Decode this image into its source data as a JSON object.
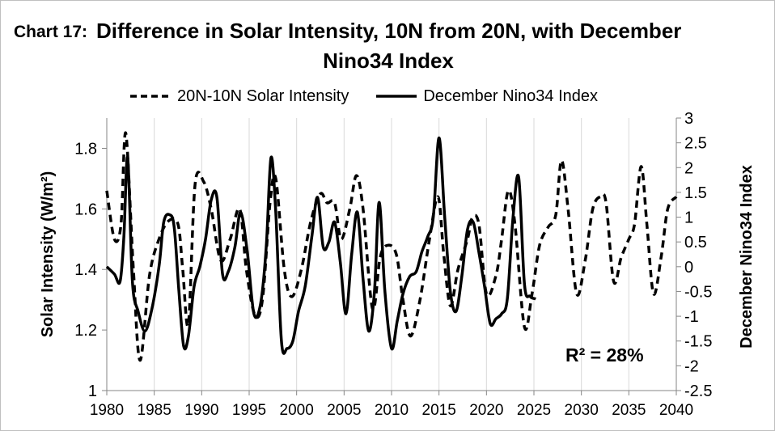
{
  "figure": {
    "chart_number": "Chart 17:",
    "title_line1": "Difference in Solar Intensity, 10N from 20N, with December",
    "title_line2": "Nino34 Index",
    "annotation": "R² = 28%"
  },
  "chart_data": {
    "type": "line",
    "title": "Difference in Solar Intensity, 10N from 20N, with December Nino34 Index",
    "xlabel": "",
    "ylabel": "Solar Intensity (W/m²)",
    "y2label": "December Nino34 Index",
    "xlim": [
      1980,
      2040
    ],
    "ylim": [
      1,
      1.9
    ],
    "y2lim": [
      -2.5,
      3
    ],
    "grid": "vertical",
    "legend_position": "top",
    "x_ticks": [
      1980,
      1985,
      1990,
      1995,
      2000,
      2005,
      2010,
      2015,
      2020,
      2025,
      2030,
      2035,
      2040
    ],
    "y_ticks": [
      1,
      1.2,
      1.4,
      1.6,
      1.8
    ],
    "y_tick_labels": [
      "1",
      "1.2",
      "1.4",
      "1.6",
      "1.8"
    ],
    "y2_ticks": [
      -2.5,
      -2,
      -1.5,
      -1,
      -0.5,
      0,
      0.5,
      1,
      1.5,
      2,
      2.5,
      3
    ],
    "y2_tick_labels": [
      "-2.5",
      "-2",
      "-1.5",
      "-1",
      "-0.5",
      "0",
      "0.5",
      "1",
      "1.5",
      "2",
      "2.5",
      "3"
    ],
    "annotation": "R² = 28%",
    "series": [
      {
        "name": "20N-10N Solar Intensity",
        "axis": "left",
        "style": "dashed",
        "x": [
          1980,
          1980.8,
          1981.5,
          1982,
          1982.8,
          1983.5,
          1984.5,
          1985.5,
          1986.5,
          1987.5,
          1988,
          1988.6,
          1989.3,
          1990.2,
          1991,
          1992,
          1993,
          1994,
          1994.7,
          1995.6,
          1996.4,
          1997.2,
          1997.8,
          1998.7,
          1999.5,
          2000.5,
          2001.5,
          2002.5,
          2003.2,
          2004,
          2004.7,
          2005.6,
          2006.3,
          2007,
          2008,
          2008.8,
          2009.6,
          2010.5,
          2011.2,
          2012,
          2013,
          2014,
          2014.9,
          2015.5,
          2016.2,
          2017,
          2018,
          2018.5,
          2019.2,
          2020,
          2021,
          2021.6,
          2022.3,
          2023,
          2024,
          2024.8,
          2025.6,
          2026.5,
          2027.3,
          2027.9,
          2028.6,
          2029.5,
          2030.4,
          2031.2,
          2032,
          2032.6,
          2033.4,
          2034.2,
          2035,
          2035.6,
          2036.3,
          2036.9,
          2037.6,
          2038.4,
          2039.1,
          2040
        ],
        "values": [
          1.66,
          1.5,
          1.55,
          1.85,
          1.4,
          1.1,
          1.38,
          1.5,
          1.56,
          1.55,
          1.4,
          1.22,
          1.68,
          1.69,
          1.6,
          1.43,
          1.5,
          1.6,
          1.4,
          1.25,
          1.3,
          1.62,
          1.7,
          1.4,
          1.31,
          1.4,
          1.56,
          1.65,
          1.62,
          1.62,
          1.5,
          1.6,
          1.71,
          1.6,
          1.27,
          1.44,
          1.48,
          1.45,
          1.3,
          1.18,
          1.3,
          1.5,
          1.64,
          1.45,
          1.28,
          1.4,
          1.5,
          1.57,
          1.55,
          1.32,
          1.38,
          1.5,
          1.66,
          1.55,
          1.21,
          1.32,
          1.48,
          1.54,
          1.58,
          1.76,
          1.6,
          1.32,
          1.43,
          1.6,
          1.64,
          1.62,
          1.36,
          1.44,
          1.5,
          1.55,
          1.74,
          1.55,
          1.32,
          1.44,
          1.6,
          1.64
        ]
      },
      {
        "name": "December Nino34 Index",
        "axis": "right",
        "style": "solid",
        "x": [
          1980,
          1980.8,
          1981.4,
          1981.8,
          1982.2,
          1982.7,
          1983.3,
          1984,
          1984.7,
          1985.5,
          1986,
          1986.6,
          1987.1,
          1987.6,
          1988.1,
          1988.6,
          1989.2,
          1989.8,
          1990.4,
          1991,
          1991.6,
          1992.2,
          1992.8,
          1993.5,
          1994.1,
          1994.8,
          1995.5,
          1996.2,
          1996.8,
          1997.3,
          1997.8,
          1998.4,
          1999,
          1999.6,
          2000.2,
          2000.9,
          2001.6,
          2002.2,
          2002.8,
          2003.4,
          2004,
          2004.6,
          2005.2,
          2005.8,
          2006.4,
          2007,
          2007.6,
          2008.2,
          2008.7,
          2009.3,
          2010,
          2010.6,
          2011.2,
          2011.9,
          2012.6,
          2013.2,
          2013.8,
          2014.4,
          2015,
          2015.6,
          2016.2,
          2016.8,
          2017.4,
          2018,
          2018.6,
          2019.2,
          2019.8,
          2020.4,
          2021,
          2021.6,
          2022.2,
          2022.8,
          2023.4,
          2024,
          2024.6,
          2025.2
        ],
        "values": [
          0,
          -0.15,
          -0.3,
          0.6,
          2.2,
          -0.3,
          -0.9,
          -1.3,
          -0.9,
          0,
          0.9,
          1.05,
          0.8,
          -0.5,
          -1.6,
          -1.4,
          -0.4,
          0,
          0.55,
          1.35,
          1.4,
          -0.15,
          -0.1,
          0.4,
          1.1,
          0.3,
          -0.95,
          -0.75,
          0.4,
          2.2,
          1.1,
          -1.5,
          -1.65,
          -1.5,
          -0.9,
          -0.4,
          0.6,
          1.4,
          0.4,
          0.5,
          0.9,
          0.1,
          -0.95,
          0.25,
          1.1,
          -0.25,
          -1.3,
          -0.5,
          1.3,
          -0.5,
          -1.65,
          -1.1,
          -0.55,
          -0.2,
          -0.1,
          0.3,
          0.6,
          1.0,
          2.6,
          1.0,
          -0.5,
          -0.9,
          -0.2,
          0.75,
          0.9,
          0.3,
          -0.4,
          -1.15,
          -1.05,
          -0.95,
          -0.65,
          1.0,
          1.8,
          -0.35,
          -0.6,
          -0.65
        ]
      }
    ]
  }
}
